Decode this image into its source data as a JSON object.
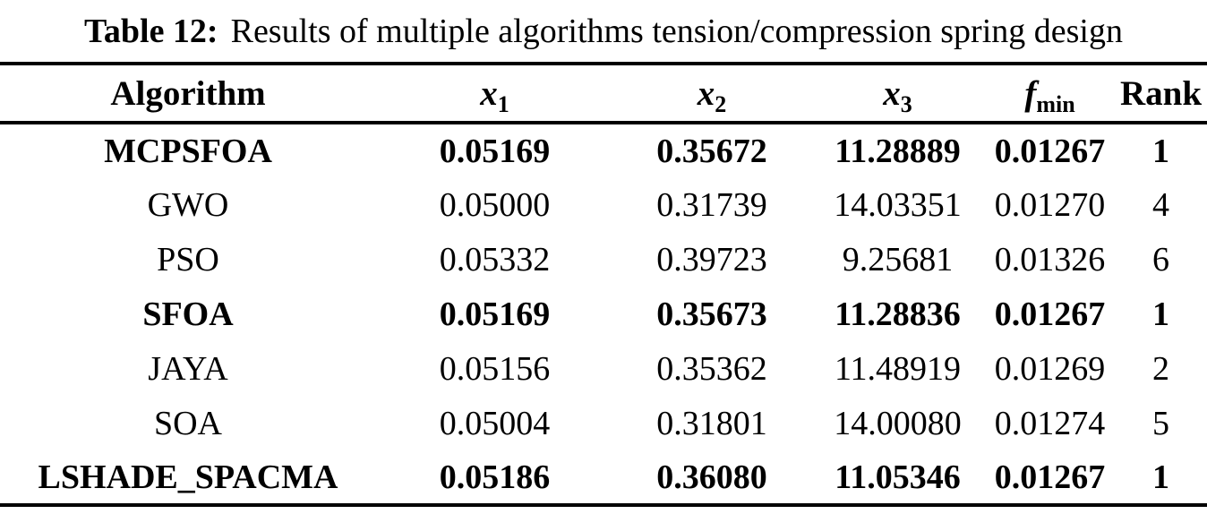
{
  "caption": {
    "label": "Table 12:",
    "text": "Results of multiple algorithms tension/compression spring design"
  },
  "table": {
    "columns": [
      {
        "id": "algorithm",
        "label": "Algorithm",
        "kind": "text"
      },
      {
        "id": "x1",
        "label": "x",
        "subscript": "1",
        "kind": "math"
      },
      {
        "id": "x2",
        "label": "x",
        "subscript": "2",
        "kind": "math"
      },
      {
        "id": "x3",
        "label": "x",
        "subscript": "3",
        "kind": "math"
      },
      {
        "id": "fmin",
        "label": "f",
        "subscript": "min",
        "kind": "math"
      },
      {
        "id": "rank",
        "label": "Rank",
        "kind": "text"
      }
    ],
    "rows": [
      {
        "bold": true,
        "cells": [
          "MCPSFOA",
          "0.05169",
          "0.35672",
          "11.28889",
          "0.01267",
          "1"
        ]
      },
      {
        "bold": false,
        "cells": [
          "GWO",
          "0.05000",
          "0.31739",
          "14.03351",
          "0.01270",
          "4"
        ]
      },
      {
        "bold": false,
        "cells": [
          "PSO",
          "0.05332",
          "0.39723",
          "9.25681",
          "0.01326",
          "6"
        ]
      },
      {
        "bold": true,
        "cells": [
          "SFOA",
          "0.05169",
          "0.35673",
          "11.28836",
          "0.01267",
          "1"
        ]
      },
      {
        "bold": false,
        "cells": [
          "JAYA",
          "0.05156",
          "0.35362",
          "11.48919",
          "0.01269",
          "2"
        ]
      },
      {
        "bold": false,
        "cells": [
          "SOA",
          "0.05004",
          "0.31801",
          "14.00080",
          "0.01274",
          "5"
        ]
      },
      {
        "bold": true,
        "cells": [
          "LSHADE_SPACMA",
          "0.05186",
          "0.36080",
          "11.05346",
          "0.01267",
          "1"
        ]
      }
    ],
    "text_color": "#000000",
    "background_color": "#ffffff",
    "rule_color": "#000000"
  }
}
